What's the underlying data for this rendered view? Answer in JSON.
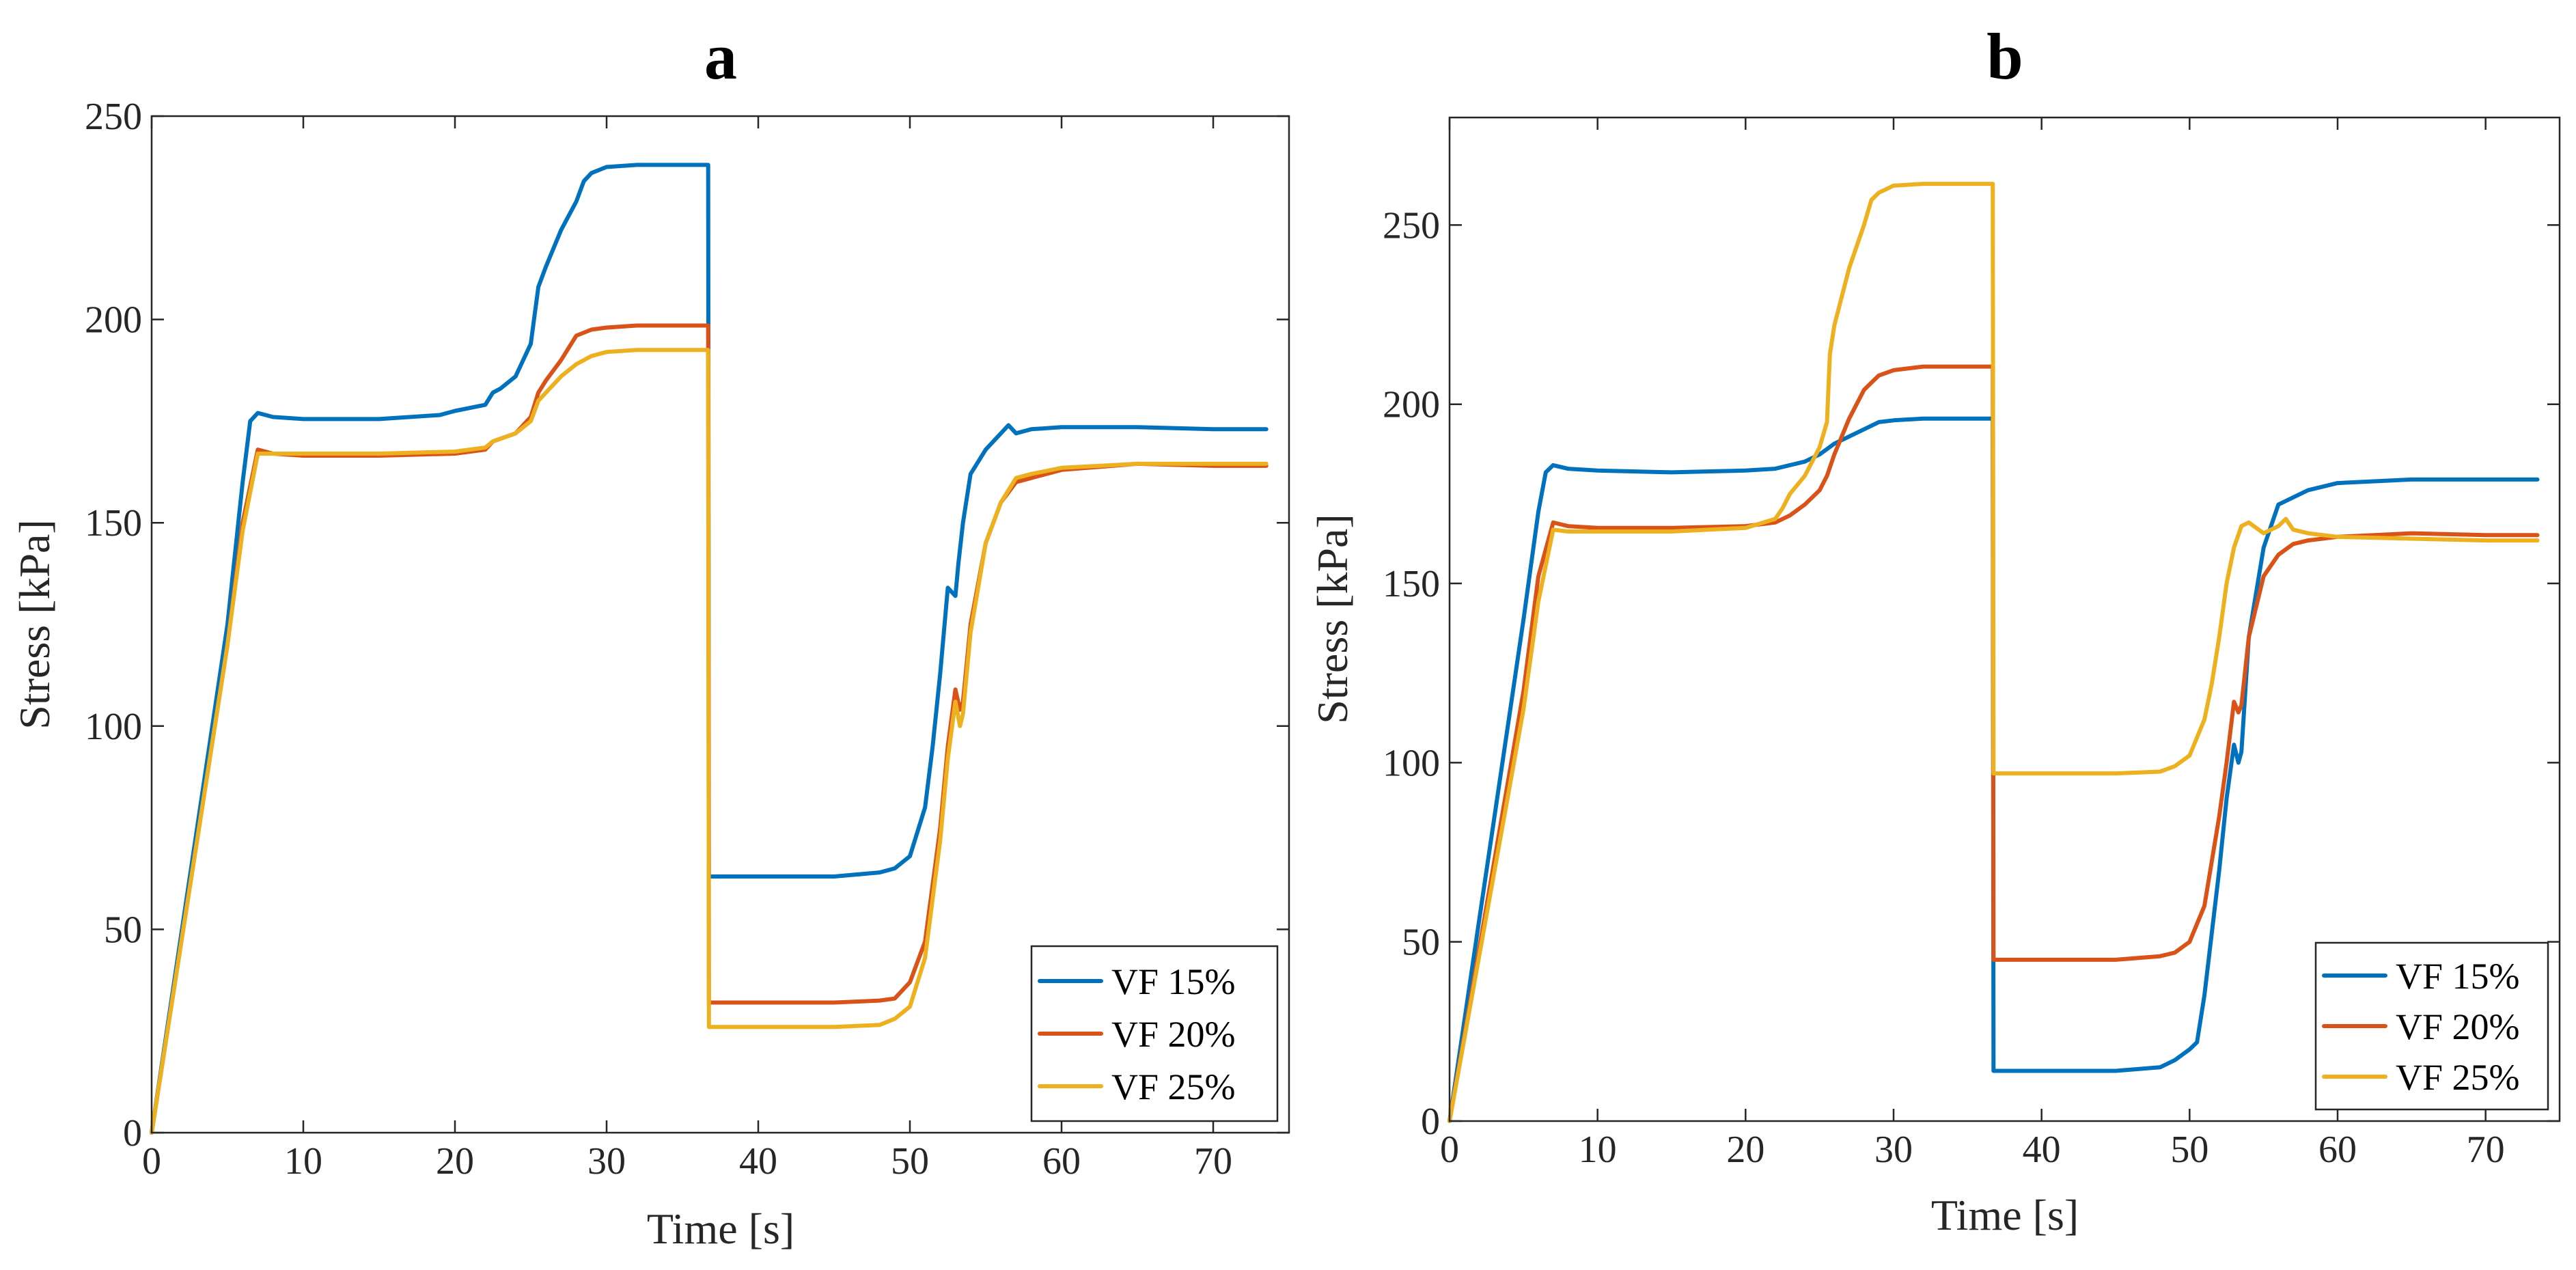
{
  "chart_data": [
    {
      "type": "line",
      "title": "a",
      "xlabel": "Time [s]",
      "ylabel": "Stress [kPa]",
      "xlim": [
        0,
        75
      ],
      "ylim": [
        0,
        250
      ],
      "xticks": [
        0,
        10,
        20,
        30,
        40,
        50,
        60,
        70
      ],
      "yticks": [
        0,
        50,
        100,
        150,
        200,
        250
      ],
      "grid": false,
      "legend_position": "bottom-right",
      "series": [
        {
          "name": "VF 15%",
          "color": "#0072BD",
          "x": [
            0,
            1,
            2,
            3,
            4,
            5,
            6,
            6.5,
            7,
            8,
            10,
            15,
            19,
            20,
            22,
            22.5,
            23,
            24,
            25,
            25.5,
            26,
            27,
            28,
            28.5,
            29,
            30,
            32,
            36.7,
            36.75,
            37,
            45,
            48,
            49,
            50,
            51,
            51.5,
            52,
            52.5,
            53,
            53.2,
            53.5,
            54,
            55,
            56,
            56.5,
            57,
            58,
            60,
            65,
            70,
            73.5
          ],
          "y": [
            0,
            25,
            50,
            75,
            100,
            125,
            160,
            175,
            177,
            176,
            175.5,
            175.5,
            176.5,
            177.5,
            179,
            182,
            183,
            186,
            194,
            208,
            213,
            222,
            229,
            234,
            236,
            237.5,
            238,
            238,
            63,
            63,
            63,
            64,
            65,
            68,
            80,
            95,
            113,
            134,
            132,
            140,
            150,
            162,
            168,
            172,
            174,
            172,
            173,
            173.5,
            173.5,
            173,
            173
          ]
        },
        {
          "name": "VF 20%",
          "color": "#D95319",
          "x": [
            0,
            1,
            2,
            3,
            4,
            5,
            6,
            7,
            8,
            10,
            15,
            20,
            22,
            22.5,
            24,
            25,
            25.5,
            26,
            27,
            28,
            29,
            30,
            32,
            36.7,
            36.75,
            37,
            45,
            48,
            49,
            50,
            51,
            52,
            52.5,
            53,
            53.3,
            53.5,
            54,
            55,
            56,
            57,
            58,
            60,
            65,
            70,
            73.5
          ],
          "y": [
            0,
            24,
            48,
            72,
            96,
            120,
            150,
            168,
            167,
            166.5,
            166.5,
            167,
            168,
            170,
            172,
            176,
            182,
            185,
            190,
            196,
            197.5,
            198,
            198.5,
            198.5,
            32,
            32,
            32,
            32.5,
            33,
            37,
            47,
            75,
            95,
            109,
            104,
            106,
            125,
            145,
            155,
            160,
            161,
            163,
            164.5,
            164,
            164
          ]
        },
        {
          "name": "VF 25%",
          "color": "#EDB120",
          "x": [
            0,
            1,
            2,
            3,
            4,
            5,
            6,
            7,
            8,
            10,
            15,
            20,
            22,
            22.5,
            24,
            25,
            25.5,
            26,
            27,
            28,
            29,
            30,
            32,
            36.7,
            36.75,
            37,
            45,
            48,
            49,
            50,
            51,
            52,
            52.5,
            53,
            53.3,
            53.5,
            54,
            55,
            56,
            57,
            58,
            60,
            65,
            70,
            73.5
          ],
          "y": [
            0,
            24,
            48,
            72,
            96,
            120,
            148,
            167,
            167,
            167,
            167,
            167.5,
            168.5,
            170,
            172,
            175,
            180,
            182,
            186,
            189,
            191,
            192,
            192.5,
            192.5,
            26,
            26,
            26,
            26.5,
            28,
            31,
            43,
            72,
            92,
            106,
            100,
            103,
            123,
            145,
            155,
            161,
            162,
            163.5,
            164.5,
            164.5,
            164.5
          ]
        }
      ]
    },
    {
      "type": "line",
      "title": "b",
      "xlabel": "Time [s]",
      "ylabel": "Stress [kPa]",
      "xlim": [
        0,
        75
      ],
      "ylim": [
        0,
        280
      ],
      "xticks": [
        0,
        10,
        20,
        30,
        40,
        50,
        60,
        70
      ],
      "yticks": [
        0,
        50,
        100,
        150,
        200,
        250
      ],
      "grid": false,
      "legend_position": "bottom-right",
      "series": [
        {
          "name": "VF 15%",
          "color": "#0072BD",
          "x": [
            0,
            1,
            2,
            3,
            4,
            5,
            6,
            6.5,
            7,
            8,
            10,
            15,
            20,
            22,
            24,
            25,
            26,
            27,
            28,
            29,
            30,
            32,
            36.7,
            36.75,
            37,
            45,
            48,
            49,
            50,
            50.5,
            51,
            52,
            52.5,
            53,
            53.3,
            53.5,
            54,
            55,
            56,
            57,
            58,
            60,
            65,
            70,
            73.5
          ],
          "y": [
            0,
            28,
            56,
            84,
            112,
            140,
            170,
            181,
            183,
            182,
            181.5,
            181,
            181.5,
            182,
            184,
            186,
            189,
            191,
            193,
            195,
            195.5,
            196,
            196,
            14,
            14,
            14,
            15,
            17,
            20,
            22,
            35,
            70,
            90,
            105,
            100,
            103,
            135,
            160,
            172,
            174,
            176,
            178,
            179,
            179,
            179
          ]
        },
        {
          "name": "VF 20%",
          "color": "#D95319",
          "x": [
            0,
            1,
            2,
            3,
            4,
            5,
            6,
            7,
            8,
            10,
            15,
            20,
            22,
            23,
            24,
            25,
            25.5,
            26,
            27,
            28,
            29,
            30,
            32,
            36.7,
            36.75,
            37,
            45,
            48,
            49,
            50,
            51,
            52,
            52.5,
            53,
            53.3,
            53.5,
            54,
            55,
            56,
            57,
            58,
            60,
            65,
            70,
            73.5
          ],
          "y": [
            0,
            24,
            48,
            72,
            96,
            120,
            152,
            167,
            166,
            165.5,
            165.5,
            166,
            167,
            169,
            172,
            176,
            180,
            186,
            196,
            204,
            208,
            209.5,
            210.5,
            210.5,
            45,
            45,
            45,
            46,
            47,
            50,
            60,
            85,
            100,
            117,
            114,
            116,
            135,
            152,
            158,
            161,
            162,
            163,
            164,
            163.5,
            163.5
          ]
        },
        {
          "name": "VF 25%",
          "color": "#EDB120",
          "x": [
            0,
            1,
            2,
            3,
            4,
            5,
            6,
            7,
            8,
            10,
            15,
            20,
            22,
            22.5,
            23,
            24,
            25,
            25.5,
            25.7,
            26,
            27,
            28,
            28.5,
            29,
            30,
            32,
            36.7,
            36.75,
            37,
            45,
            48,
            49,
            50,
            51,
            51.5,
            52,
            52.5,
            53,
            53.5,
            54,
            55,
            56,
            56.5,
            57,
            58,
            60,
            65,
            70,
            73.5
          ],
          "y": [
            0,
            23,
            46,
            69,
            92,
            115,
            145,
            165,
            164.5,
            164.5,
            164.5,
            165.5,
            168,
            171,
            175,
            180,
            188,
            195,
            214,
            222,
            238,
            250,
            257,
            259,
            261,
            261.5,
            261.5,
            97,
            97,
            97,
            97.5,
            99,
            102,
            112,
            122,
            135,
            150,
            160,
            166,
            167,
            164,
            166,
            168,
            165,
            164,
            163,
            162.5,
            162,
            162
          ]
        }
      ]
    }
  ]
}
